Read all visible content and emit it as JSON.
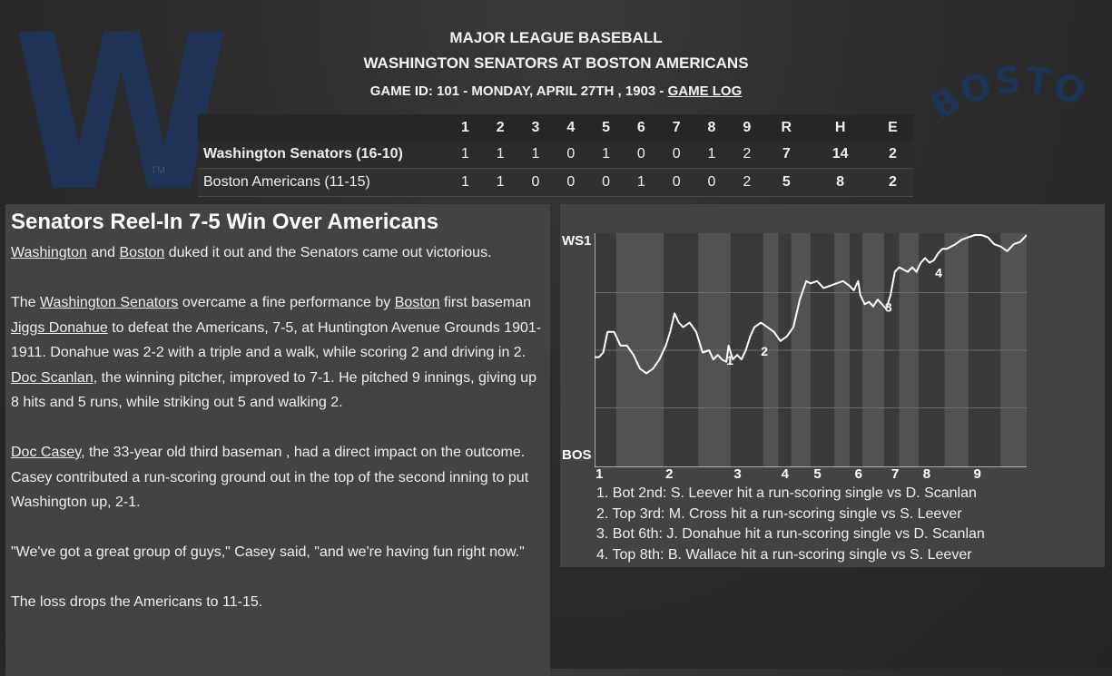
{
  "header": {
    "league": "MAJOR LEAGUE BASEBALL",
    "matchup": "WASHINGTON SENATORS AT BOSTON AMERICANS",
    "game_info": "GAME ID: 101 - MONDAY, APRIL 27TH , 1903 - ",
    "game_log_link": "GAME LOG"
  },
  "logos": {
    "away_logo_letter": "W",
    "away_logo_tm": "TM",
    "home_logo_text": "BOSTON"
  },
  "linescore": {
    "columns": [
      "1",
      "2",
      "3",
      "4",
      "5",
      "6",
      "7",
      "8",
      "9",
      "R",
      "H",
      "E"
    ],
    "rows": [
      {
        "team": "Washington Senators (16-10)",
        "innings": [
          "1",
          "1",
          "1",
          "0",
          "1",
          "0",
          "0",
          "1",
          "2"
        ],
        "r": "7",
        "h": "14",
        "e": "2"
      },
      {
        "team": "Boston Americans (11-15)",
        "innings": [
          "1",
          "1",
          "0",
          "0",
          "0",
          "1",
          "0",
          "0",
          "2"
        ],
        "r": "5",
        "h": "8",
        "e": "2"
      }
    ]
  },
  "article": {
    "title": "Senators Reel-In 7-5 Win Over Americans",
    "p1": {
      "link1": "Washington",
      "t1": " and ",
      "link2": "Boston",
      "t2": " duked it out and the Senators came out victorious."
    },
    "p2": {
      "t0": "The ",
      "link1": "Washington Senators",
      "t1": " overcame a fine performance by ",
      "link2": "Boston",
      "t2": " first baseman ",
      "link3": "Jiggs Donahue",
      "t3": " to defeat the Americans, 7-5, at Huntington Avenue Grounds 1901-1911. Donahue was 2-2 with a triple and a walk, while scoring 2 and driving in 2. ",
      "link4": "Doc Scanlan",
      "t4": ", the winning pitcher, improved to 7-1. He pitched 9 innings, giving up 8 hits and 5 runs, while striking out 5 and walking 2."
    },
    "p3": {
      "link1": "Doc Casey",
      "t1": ", the 33-year old third baseman , had a direct impact on the outcome. Casey contributed a run-scoring ground out in the top of the second inning to put Washington up, 2-1."
    },
    "p4": "\"We've got a great group of guys,\" Casey said, \"and we're having fun right now.\"",
    "p5": "The loss drops the Americans to 11-15."
  },
  "chart_data": {
    "type": "line",
    "title": "",
    "y_top_label": "WS1",
    "y_bottom_label": "BOS",
    "ylim": [
      0,
      1
    ],
    "inning_labels": [
      "1",
      "2",
      "3",
      "4",
      "5",
      "6",
      "7",
      "8",
      "9"
    ],
    "inning_label_x": [
      0,
      0.162,
      0.32,
      0.43,
      0.505,
      0.6,
      0.685,
      0.758,
      0.875
    ],
    "band_color_a": "#3a3a3a",
    "band_color_b": "#525252",
    "bands": [
      [
        0.05,
        0.16
      ],
      [
        0.24,
        0.315
      ],
      [
        0.39,
        0.425
      ],
      [
        0.455,
        0.5
      ],
      [
        0.555,
        0.59
      ],
      [
        0.62,
        0.67
      ],
      [
        0.705,
        0.75
      ],
      [
        0.81,
        0.865
      ],
      [
        0.94,
        1.0
      ]
    ],
    "series": [
      {
        "line_color": "#ffffff",
        "x": [
          0,
          0.01,
          0.02,
          0.03,
          0.045,
          0.06,
          0.075,
          0.09,
          0.105,
          0.12,
          0.135,
          0.15,
          0.165,
          0.175,
          0.185,
          0.195,
          0.205,
          0.22,
          0.235,
          0.25,
          0.265,
          0.275,
          0.285,
          0.295,
          0.305,
          0.31,
          0.32,
          0.33,
          0.34,
          0.35,
          0.36,
          0.37,
          0.385,
          0.4,
          0.415,
          0.43,
          0.445,
          0.46,
          0.475,
          0.49,
          0.5,
          0.515,
          0.53,
          0.545,
          0.56,
          0.575,
          0.59,
          0.6,
          0.61,
          0.615,
          0.625,
          0.635,
          0.645,
          0.655,
          0.665,
          0.675,
          0.685,
          0.695,
          0.705,
          0.715,
          0.725,
          0.735,
          0.745,
          0.755,
          0.765,
          0.775,
          0.785,
          0.795,
          0.805,
          0.815,
          0.825,
          0.835,
          0.85,
          0.865,
          0.88,
          0.895,
          0.91,
          0.925,
          0.94,
          0.955,
          0.97,
          0.985,
          1.0
        ],
        "y": [
          0.47,
          0.47,
          0.49,
          0.58,
          0.58,
          0.52,
          0.52,
          0.48,
          0.42,
          0.4,
          0.42,
          0.46,
          0.52,
          0.58,
          0.66,
          0.62,
          0.6,
          0.62,
          0.58,
          0.49,
          0.5,
          0.46,
          0.48,
          0.46,
          0.45,
          0.52,
          0.46,
          0.48,
          0.46,
          0.5,
          0.56,
          0.6,
          0.62,
          0.6,
          0.58,
          0.54,
          0.56,
          0.6,
          0.72,
          0.8,
          0.79,
          0.8,
          0.77,
          0.78,
          0.79,
          0.8,
          0.78,
          0.76,
          0.8,
          0.74,
          0.7,
          0.71,
          0.69,
          0.72,
          0.7,
          0.68,
          0.74,
          0.84,
          0.86,
          0.85,
          0.84,
          0.86,
          0.84,
          0.88,
          0.9,
          0.88,
          0.89,
          0.92,
          0.94,
          0.94,
          0.95,
          0.96,
          0.98,
          0.99,
          1.0,
          1.0,
          0.99,
          0.96,
          0.95,
          0.93,
          0.96,
          0.97,
          1.0
        ]
      }
    ],
    "event_markers": [
      {
        "label": "1",
        "x": 0.305,
        "y": 0.46
      },
      {
        "label": "2",
        "x": 0.385,
        "y": 0.5
      },
      {
        "label": "3",
        "x": 0.672,
        "y": 0.69
      },
      {
        "label": "4",
        "x": 0.788,
        "y": 0.84
      }
    ],
    "notes": [
      "1. Bot 2nd: S. Leever hit a run-scoring single vs D. Scanlan",
      "2. Top 3rd: M. Cross hit a run-scoring single vs S. Leever",
      "3. Bot 6th: J. Donahue hit a run-scoring single vs D. Scanlan",
      "4. Top 8th: B. Wallace hit a run-scoring single vs S. Leever"
    ]
  }
}
